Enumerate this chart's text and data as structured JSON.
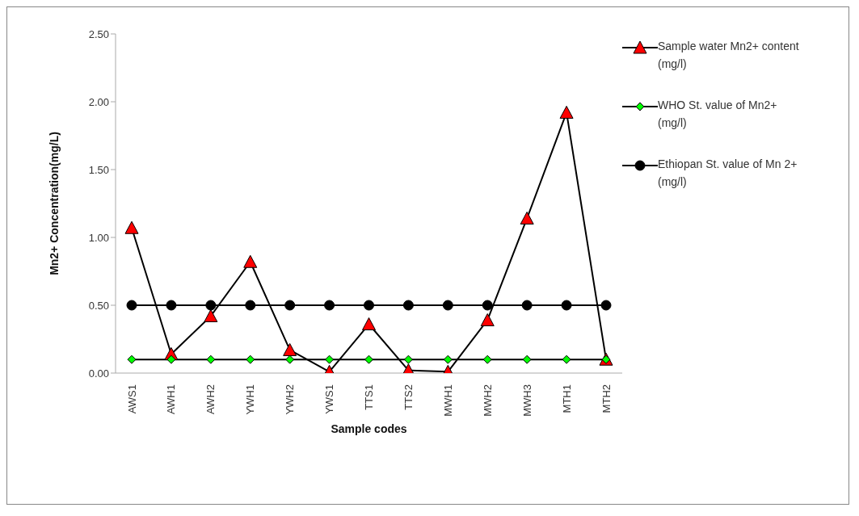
{
  "chart_data": {
    "type": "line",
    "xlabel": "Sample codes",
    "ylabel": "Mn2+ Concentration(mg/L)",
    "categories": [
      "AWS1",
      "AWH1",
      "AWH2",
      "YWH1",
      "YWH2",
      "YWS1",
      "TTS1",
      "TTS2",
      "MWH1",
      "MWH2",
      "MWH3",
      "MTH1",
      "MTH2"
    ],
    "series": [
      {
        "name": "Sample water Mn2+ content  (mg/l)",
        "color": "#ff0000",
        "marker": "triangle",
        "values": [
          1.07,
          0.14,
          0.42,
          0.82,
          0.17,
          0.01,
          0.36,
          0.02,
          0.01,
          0.39,
          1.14,
          1.92,
          0.1
        ]
      },
      {
        "name": "WHO St. value of Mn2+ (mg/l)",
        "color": "#00ff00",
        "marker": "diamond",
        "values": [
          0.1,
          0.1,
          0.1,
          0.1,
          0.1,
          0.1,
          0.1,
          0.1,
          0.1,
          0.1,
          0.1,
          0.1,
          0.1
        ]
      },
      {
        "name": "Ethiopan St. value of Mn 2+ (mg/l)",
        "color": "#000000",
        "marker": "circle",
        "values": [
          0.5,
          0.5,
          0.5,
          0.5,
          0.5,
          0.5,
          0.5,
          0.5,
          0.5,
          0.5,
          0.5,
          0.5,
          0.5
        ]
      }
    ],
    "ylim": [
      0,
      2.5
    ],
    "yticks": [
      {
        "value": 0,
        "label": "0.00"
      },
      {
        "value": 0.5,
        "label": "0.50"
      },
      {
        "value": 1,
        "label": "1.00"
      },
      {
        "value": 1.5,
        "label": "1.50"
      },
      {
        "value": 2,
        "label": "2.00"
      },
      {
        "value": 2.5,
        "label": "2.50"
      }
    ],
    "grid": false,
    "legend": "right",
    "line_style": "solid"
  }
}
